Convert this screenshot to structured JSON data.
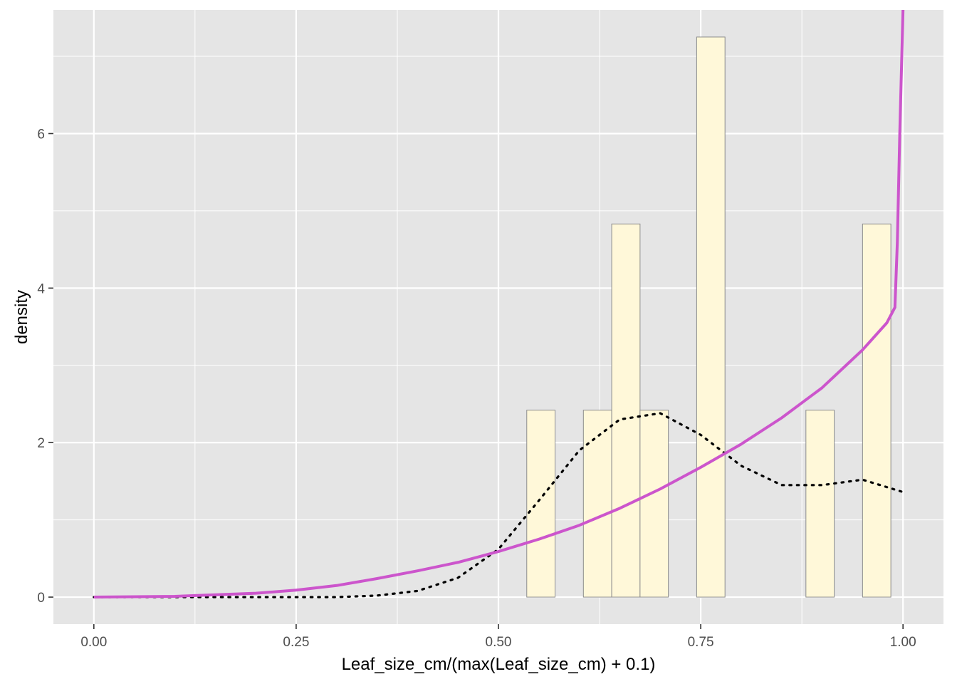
{
  "chart_data": {
    "type": "bar",
    "xlabel": "Leaf_size_cm/(max(Leaf_size_cm) + 0.1)",
    "ylabel": "density",
    "xlim": [
      -0.05,
      1.05
    ],
    "ylim": [
      -0.35,
      7.6
    ],
    "x_ticks": [
      0.0,
      0.25,
      0.5,
      0.75,
      1.0
    ],
    "x_tick_labels": [
      "0.00",
      "0.25",
      "0.50",
      "0.75",
      "1.00"
    ],
    "y_ticks": [
      0,
      2,
      4,
      6
    ],
    "y_tick_labels": [
      "0",
      "2",
      "4",
      "6"
    ],
    "grid": true,
    "legend": "none",
    "histogram": {
      "bins": [
        {
          "x0": 0.535,
          "x1": 0.57,
          "density": 2.42
        },
        {
          "x0": 0.605,
          "x1": 0.64,
          "density": 2.42
        },
        {
          "x0": 0.64,
          "x1": 0.675,
          "density": 4.83
        },
        {
          "x0": 0.675,
          "x1": 0.71,
          "density": 2.42
        },
        {
          "x0": 0.745,
          "x1": 0.78,
          "density": 7.25
        },
        {
          "x0": 0.88,
          "x1": 0.915,
          "density": 2.42
        },
        {
          "x0": 0.95,
          "x1": 0.985,
          "density": 4.83
        }
      ],
      "fill": "#fff8d9",
      "stroke": "#8c8c8c"
    },
    "series": [
      {
        "style": "dotted",
        "color": "#000000",
        "x": [
          0.0,
          0.1,
          0.2,
          0.3,
          0.35,
          0.4,
          0.45,
          0.5,
          0.55,
          0.6,
          0.65,
          0.7,
          0.75,
          0.8,
          0.85,
          0.9,
          0.95,
          1.0
        ],
        "y": [
          0.0,
          0.0,
          0.0,
          0.0,
          0.02,
          0.08,
          0.25,
          0.62,
          1.25,
          1.9,
          2.3,
          2.38,
          2.1,
          1.7,
          1.45,
          1.45,
          1.52,
          1.36
        ]
      },
      {
        "style": "solid",
        "color": "#cc55cc",
        "x": [
          0.0,
          0.1,
          0.2,
          0.25,
          0.3,
          0.35,
          0.4,
          0.45,
          0.5,
          0.55,
          0.6,
          0.65,
          0.7,
          0.75,
          0.8,
          0.85,
          0.9,
          0.95,
          0.98,
          0.99,
          0.993,
          0.996,
          1.0
        ],
        "y": [
          0.0,
          0.01,
          0.05,
          0.09,
          0.15,
          0.24,
          0.34,
          0.45,
          0.59,
          0.75,
          0.93,
          1.15,
          1.4,
          1.68,
          1.98,
          2.32,
          2.71,
          3.2,
          3.55,
          3.75,
          4.6,
          6.0,
          7.6
        ]
      }
    ]
  }
}
